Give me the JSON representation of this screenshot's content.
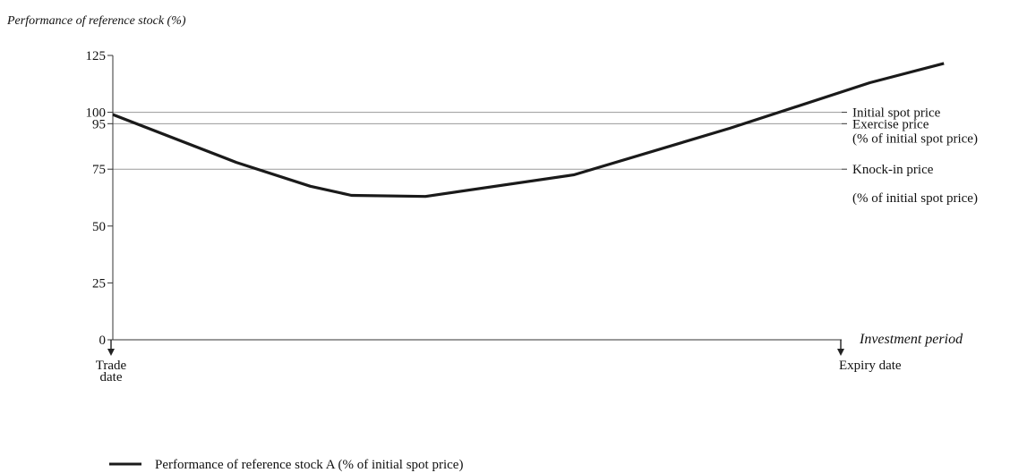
{
  "chart_data": {
    "type": "line",
    "ylabel": "Performance of reference stock (%)",
    "xlabel": "Investment period",
    "ylim": [
      0,
      125
    ],
    "yticks": [
      0,
      25,
      50,
      75,
      95,
      100,
      125
    ],
    "x_ticks": [
      {
        "label_lines": [
          "Trade",
          "date"
        ]
      },
      {
        "label_lines": [
          "Expiry date"
        ]
      }
    ],
    "xlim": [
      0,
      10
    ],
    "grid": false,
    "reference_lines": [
      {
        "value": 100,
        "label_lines": [
          "Initial spot price"
        ]
      },
      {
        "value": 95,
        "label_lines": [
          "Exercise price",
          "(% of initial spot price)"
        ]
      },
      {
        "value": 75,
        "label_lines": [
          "Knock-in price",
          "",
          "(% of initial spot price)"
        ]
      }
    ],
    "series": [
      {
        "name": "Performance of reference stock A (% of initial spot price)",
        "color": "#1a1a1a",
        "x": [
          0,
          1.5,
          2.4,
          2.9,
          3.8,
          5.6,
          7.5,
          9.2,
          10.1
        ],
        "y": [
          99,
          78,
          67.5,
          63.5,
          63,
          72.5,
          93,
          113,
          121.5
        ]
      }
    ],
    "legend_position": "bottom-left"
  }
}
